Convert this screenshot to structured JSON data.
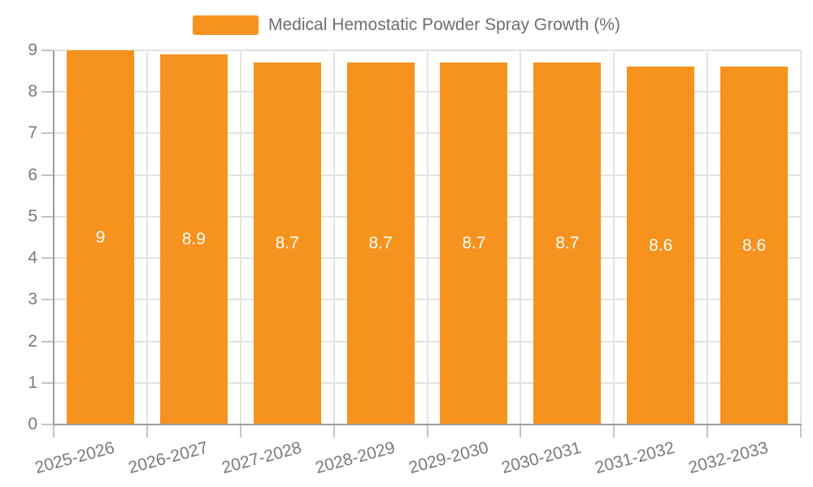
{
  "chart_data": {
    "type": "bar",
    "title": "Medical Hemostatic Powder Spray Growth (%)",
    "legend": [
      "Medical Hemostatic Powder Spray Growth (%)"
    ],
    "legend_position": "top-center",
    "categories": [
      "2025-2026",
      "2026-2027",
      "2027-2028",
      "2028-2029",
      "2029-2030",
      "2030-2031",
      "2031-2032",
      "2032-2033"
    ],
    "values": [
      9,
      8.9,
      8.7,
      8.7,
      8.7,
      8.7,
      8.6,
      8.6
    ],
    "value_labels": [
      "9",
      "8.9",
      "8.7",
      "8.7",
      "8.7",
      "8.7",
      "8.6",
      "8.6"
    ],
    "xlabel": "",
    "ylabel": "",
    "ylim": [
      0,
      9
    ],
    "y_ticks": [
      0,
      1,
      2,
      3,
      4,
      5,
      6,
      7,
      8,
      9
    ],
    "y_tick_labels": [
      "0",
      "1",
      "2",
      "3",
      "4",
      "5",
      "6",
      "7",
      "8",
      "9"
    ],
    "grid": true,
    "colors": {
      "bar": "#F6921E",
      "grid": "#E3E3E3",
      "axis": "#9E9E9E",
      "axis_tick": "#C4C4C4",
      "tick_label": "#7A7A7A",
      "value_label": "#FFFFFF",
      "legend_text": "#6E6E6E"
    }
  }
}
